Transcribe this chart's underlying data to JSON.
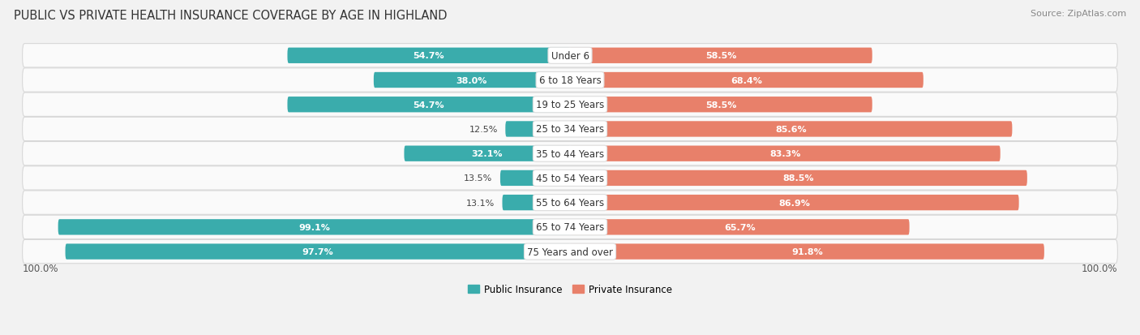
{
  "title": "PUBLIC VS PRIVATE HEALTH INSURANCE COVERAGE BY AGE IN HIGHLAND",
  "source": "Source: ZipAtlas.com",
  "categories": [
    "Under 6",
    "6 to 18 Years",
    "19 to 25 Years",
    "25 to 34 Years",
    "35 to 44 Years",
    "45 to 54 Years",
    "55 to 64 Years",
    "65 to 74 Years",
    "75 Years and over"
  ],
  "public_values": [
    54.7,
    38.0,
    54.7,
    12.5,
    32.1,
    13.5,
    13.1,
    99.1,
    97.7
  ],
  "private_values": [
    58.5,
    68.4,
    58.5,
    85.6,
    83.3,
    88.5,
    86.9,
    65.7,
    91.8
  ],
  "public_color": "#3AACAC",
  "private_color": "#E8806A",
  "background_color": "#f2f2f2",
  "row_bg_color": "#efefef",
  "row_inner_color": "#fafafa",
  "max_value": 100.0,
  "legend_public": "Public Insurance",
  "legend_private": "Private Insurance",
  "title_fontsize": 10.5,
  "label_fontsize": 8.5,
  "category_fontsize": 8.5,
  "value_fontsize": 8.0,
  "source_fontsize": 8.0,
  "inside_threshold": 20
}
